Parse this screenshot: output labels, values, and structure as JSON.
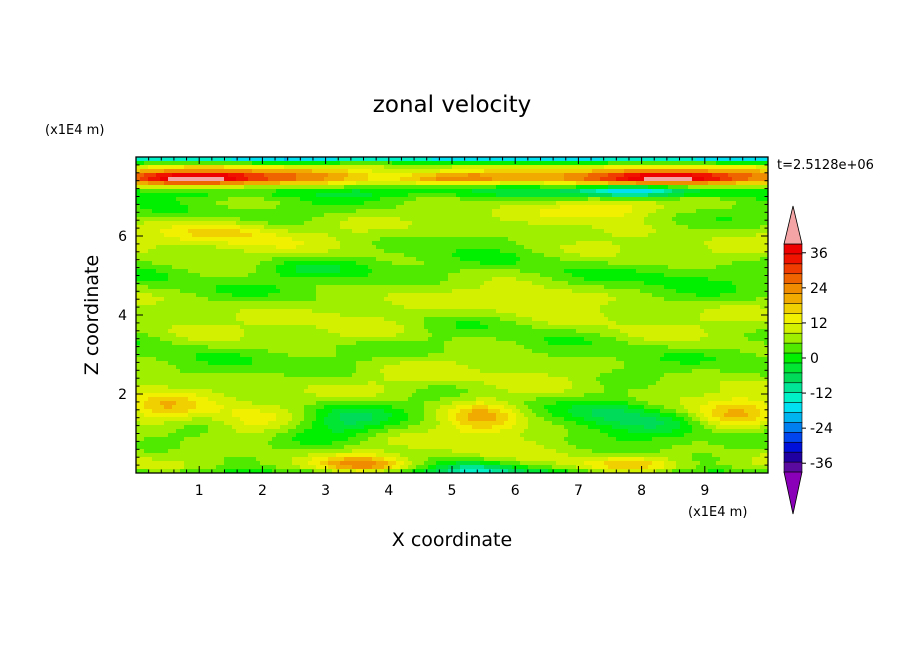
{
  "chart_data": {
    "type": "heatmap",
    "title": "zonal velocity",
    "xlabel": "X coordinate",
    "ylabel": "Z coordinate",
    "x_unit": "(x1E4 m)",
    "y_unit": "(x1E4 m)",
    "time_label": "t=2.5128e+06",
    "xlim": [
      0,
      10
    ],
    "ylim": [
      0,
      8
    ],
    "x_ticks": [
      "1",
      "2",
      "3",
      "4",
      "5",
      "6",
      "7",
      "8",
      "9"
    ],
    "y_ticks": [
      "2",
      "4",
      "6"
    ],
    "colorbar": {
      "levels": [
        -42,
        -39,
        -36,
        -33,
        -30,
        -27,
        -24,
        -21,
        -18,
        -15,
        -12,
        -9,
        -6,
        -3,
        0,
        3,
        6,
        9,
        12,
        15,
        18,
        21,
        24,
        27,
        30,
        33,
        36,
        39,
        42
      ],
      "tick_labels": [
        "36",
        "24",
        "12",
        "0",
        "-12",
        "-24",
        "-36"
      ],
      "tick_values": [
        36,
        24,
        12,
        0,
        -12,
        -24,
        -36
      ],
      "colors": [
        "#8a00b8",
        "#5a0a9e",
        "#2000a0",
        "#0010d8",
        "#0045ee",
        "#0080f0",
        "#00b4f0",
        "#00e0f0",
        "#00f0c8",
        "#00e696",
        "#00dc5a",
        "#00e632",
        "#00f000",
        "#50ea00",
        "#9ef000",
        "#d2f000",
        "#f0f000",
        "#f0d000",
        "#f0aa00",
        "#f08c00",
        "#f06400",
        "#f03c00",
        "#f01400",
        "#ee0000",
        "#f4a4a4"
      ],
      "over_color": "#f4a4a4",
      "under_color": "#8a00b8"
    },
    "features": [
      {
        "x": 5.5,
        "z": 1.4,
        "value": 14
      },
      {
        "x": 9.5,
        "z": 1.5,
        "value": 10
      },
      {
        "x": 0.4,
        "z": 1.6,
        "value": 9
      },
      {
        "x": 1.8,
        "z": 1.2,
        "value": 6
      },
      {
        "x": 3.3,
        "z": 1.4,
        "value": -8
      },
      {
        "x": 7.5,
        "z": 1.6,
        "value": -10
      },
      {
        "x": 8.3,
        "z": 1.3,
        "value": -6
      },
      {
        "x": 3.6,
        "z": 0.2,
        "value": 14
      },
      {
        "x": 5.3,
        "z": 0.1,
        "value": -12
      },
      {
        "x": 7.9,
        "z": 0.2,
        "value": 8
      },
      {
        "x": 1.0,
        "z": 7.45,
        "value": 16
      },
      {
        "x": 5.0,
        "z": 7.45,
        "value": 12
      },
      {
        "x": 8.5,
        "z": 7.45,
        "value": 16
      },
      {
        "x": 7.8,
        "z": 7.15,
        "value": -14
      },
      {
        "x": 7.5,
        "z": 6.7,
        "value": 12
      },
      {
        "x": 1.5,
        "z": 6.1,
        "value": 9
      },
      {
        "x": 2.7,
        "z": 5.2,
        "value": -5
      },
      {
        "x": 5.2,
        "z": 6.0,
        "value": -4
      },
      {
        "x": 3.8,
        "z": 3.5,
        "value": 4
      },
      {
        "x": 6.4,
        "z": 4.4,
        "value": 4
      },
      {
        "x": 8.6,
        "z": 5.1,
        "value": -4
      }
    ]
  }
}
